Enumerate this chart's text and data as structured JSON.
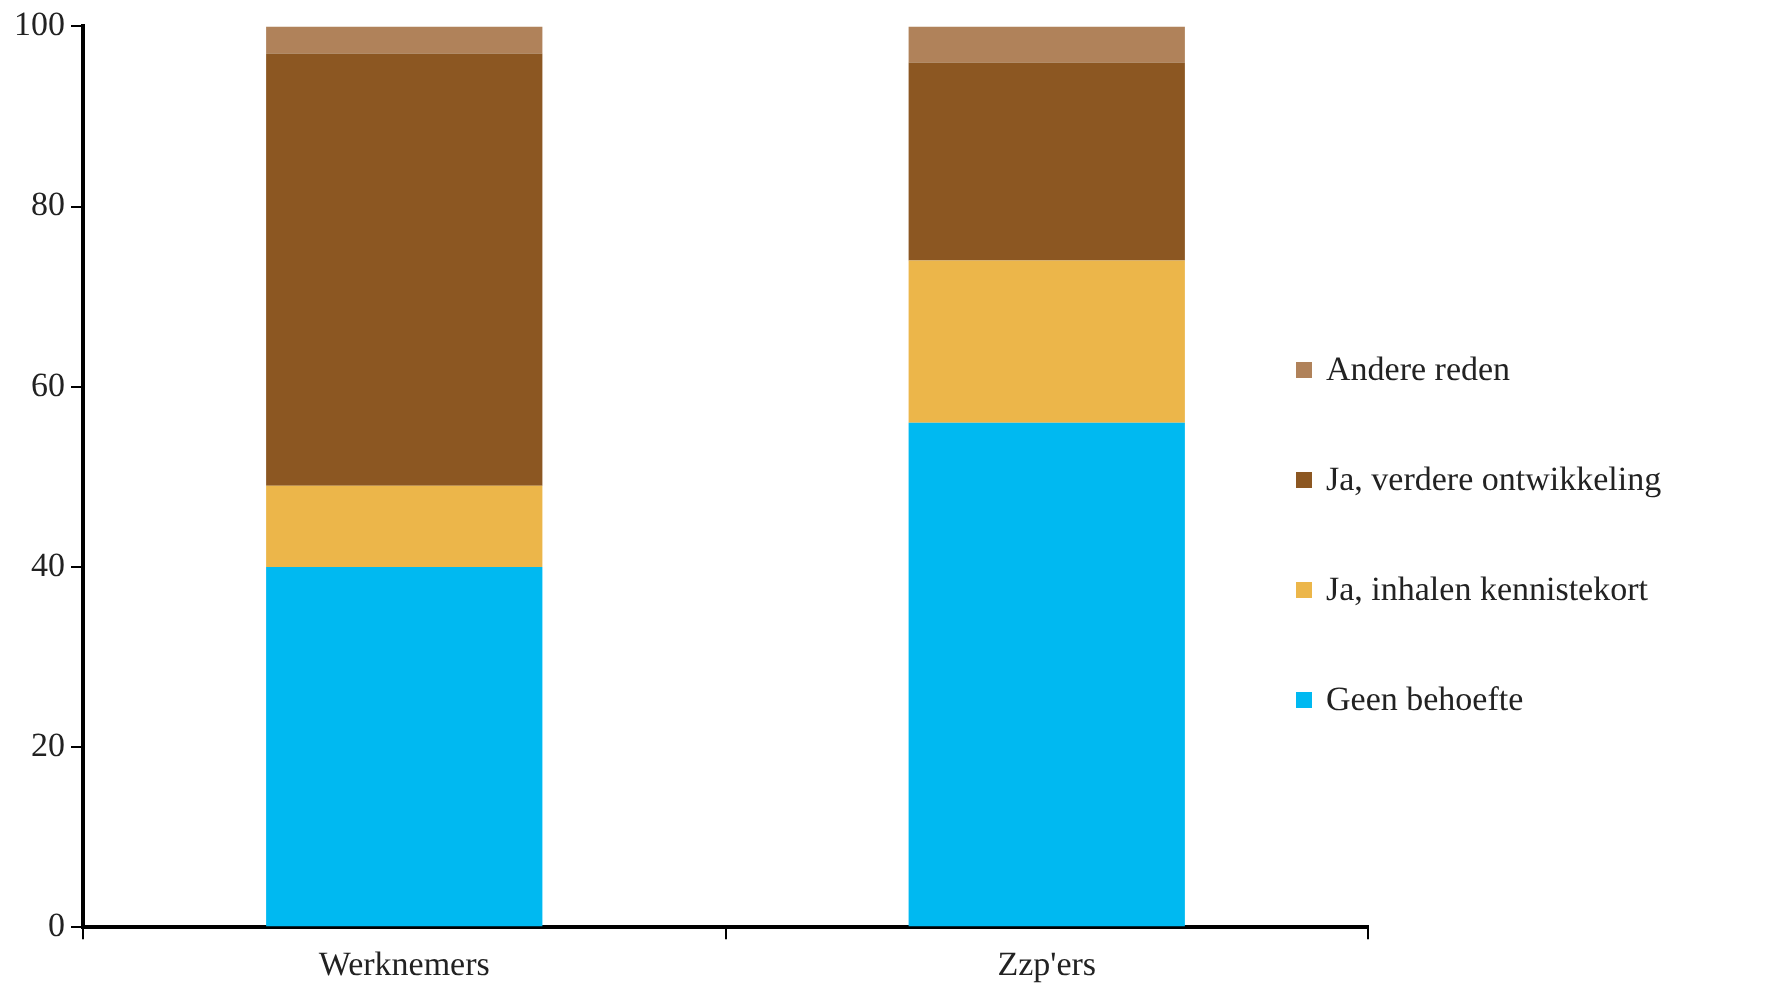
{
  "chart_data": {
    "type": "bar",
    "stacked": true,
    "categories": [
      "Werknemers",
      "Zzp'ers"
    ],
    "series": [
      {
        "name": "Geen behoefte",
        "color": "#00b9f1",
        "values": [
          40,
          56
        ]
      },
      {
        "name": "Ja, inhalen kennistekort",
        "color": "#ecb64a",
        "values": [
          9,
          18
        ]
      },
      {
        "name": "Ja, verdere ontwikkeling",
        "color": "#8c5722",
        "values": [
          48,
          22
        ]
      },
      {
        "name": "Andere reden",
        "color": "#b0825a",
        "values": [
          3,
          4
        ]
      }
    ],
    "ylim": [
      0,
      100
    ],
    "yticks": [
      0,
      20,
      40,
      60,
      80,
      100
    ],
    "grid": false,
    "legend": "right"
  }
}
